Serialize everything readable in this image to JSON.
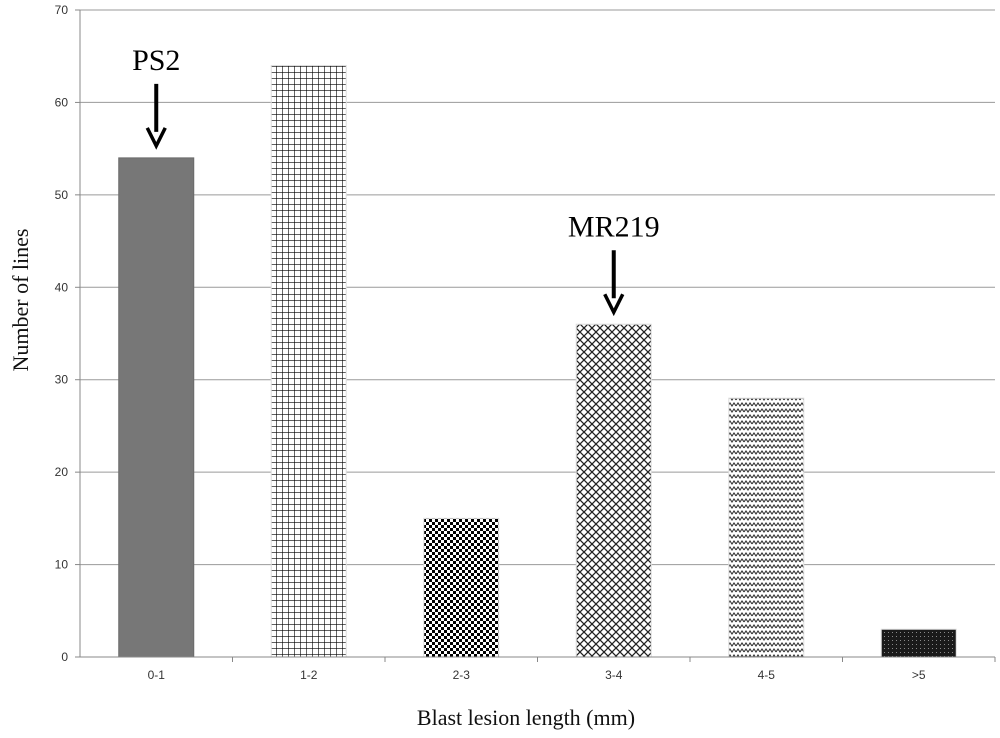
{
  "chart_data": {
    "type": "bar",
    "title": "",
    "xlabel": "Blast lesion length (mm)",
    "ylabel": "Number of lines",
    "categories": [
      "0-1",
      "1-2",
      "2-3",
      "3-4",
      "4-5",
      ">5"
    ],
    "values": [
      54,
      64,
      15,
      36,
      28,
      3
    ],
    "ylim": [
      0,
      70
    ],
    "yticks": [
      0,
      10,
      20,
      30,
      40,
      50,
      60,
      70
    ],
    "grid": "horizontal",
    "legend": "none",
    "bar_patterns": [
      "solid-gray",
      "square-grid",
      "checkerboard",
      "diagonal-crosshatch",
      "zigzag",
      "dense-dark"
    ],
    "annotations": [
      {
        "text": "PS2",
        "category": "0-1",
        "arrow": "down"
      },
      {
        "text": "MR219",
        "category": "3-4",
        "arrow": "down"
      }
    ]
  }
}
